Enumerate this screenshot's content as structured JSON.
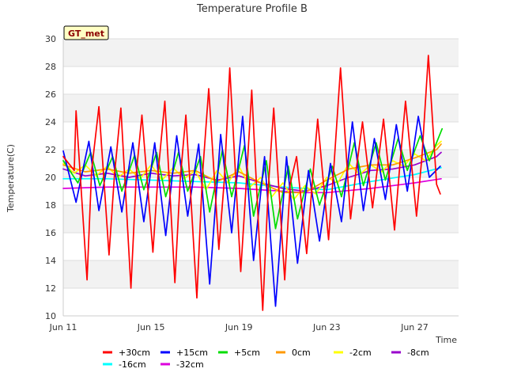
{
  "chart_data": {
    "type": "line",
    "title": "Temperature Profile B",
    "xlabel": "Time",
    "ylabel": "Temperature(C)",
    "badge": "GT_met",
    "ylim": [
      10,
      30
    ],
    "yticks": [
      10,
      12,
      14,
      16,
      18,
      20,
      22,
      24,
      26,
      28,
      30
    ],
    "xlim": [
      "2024-06-11",
      "2024-06-29"
    ],
    "xticks": [
      {
        "date": "2024-06-11",
        "label": "Jun 11"
      },
      {
        "date": "2024-06-15",
        "label": "Jun 15"
      },
      {
        "date": "2024-06-19",
        "label": "Jun 19"
      },
      {
        "date": "2024-06-23",
        "label": "Jun 23"
      },
      {
        "date": "2024-06-27",
        "label": "Jun 27"
      }
    ],
    "grid": true,
    "legend_position": "bottom",
    "series": [
      {
        "name": "+30cm",
        "color": "#ff0000",
        "x": [
          "2024-06-11 00:00",
          "2024-06-11 12:00",
          "2024-06-11 14:00",
          "2024-06-12 02:00",
          "2024-06-12 07:00",
          "2024-06-12 15:00",
          "2024-06-13 02:00",
          "2024-06-13 08:00",
          "2024-06-13 15:00",
          "2024-06-14 02:00",
          "2024-06-14 08:00",
          "2024-06-14 14:00",
          "2024-06-15 02:00",
          "2024-06-15 08:00",
          "2024-06-15 15:00",
          "2024-06-16 02:00",
          "2024-06-16 08:00",
          "2024-06-16 14:00",
          "2024-06-17 02:00",
          "2024-06-17 08:00",
          "2024-06-17 15:00",
          "2024-06-18 02:00",
          "2024-06-18 08:00",
          "2024-06-18 14:00",
          "2024-06-19 02:00",
          "2024-06-19 08:00",
          "2024-06-19 14:00",
          "2024-06-20 02:00",
          "2024-06-20 08:00",
          "2024-06-20 14:00",
          "2024-06-21 02:00",
          "2024-06-21 08:00",
          "2024-06-21 15:00",
          "2024-06-22 02:00",
          "2024-06-22 08:00",
          "2024-06-22 14:00",
          "2024-06-23 02:00",
          "2024-06-23 08:00",
          "2024-06-23 15:00",
          "2024-06-24 02:00",
          "2024-06-24 08:00",
          "2024-06-24 15:00",
          "2024-06-25 02:00",
          "2024-06-25 08:00",
          "2024-06-25 14:00",
          "2024-06-26 02:00",
          "2024-06-26 08:00",
          "2024-06-26 14:00",
          "2024-06-27 02:00",
          "2024-06-27 08:00",
          "2024-06-27 15:00",
          "2024-06-28 00:00",
          "2024-06-28 04:00"
        ],
        "y": [
          21.5,
          20.5,
          24.8,
          12.6,
          20.5,
          25.1,
          14.4,
          20.2,
          25.0,
          12.0,
          20.4,
          24.5,
          14.6,
          20.6,
          25.5,
          12.4,
          20.0,
          24.5,
          11.3,
          20.0,
          26.4,
          14.8,
          19.8,
          27.9,
          13.2,
          19.6,
          26.3,
          10.4,
          19.2,
          25.0,
          12.6,
          19.5,
          21.5,
          14.5,
          19.5,
          24.2,
          15.5,
          21.0,
          27.9,
          17.0,
          20.5,
          24.0,
          17.8,
          21.0,
          24.2,
          16.2,
          21.0,
          25.5,
          17.2,
          21.5,
          28.8,
          19.5,
          18.8
        ]
      },
      {
        "name": "+15cm",
        "color": "#0000ff",
        "x": [
          "2024-06-11 00:00",
          "2024-06-11 14:00",
          "2024-06-12 04:00",
          "2024-06-12 15:00",
          "2024-06-13 04:00",
          "2024-06-13 16:00",
          "2024-06-14 04:00",
          "2024-06-14 16:00",
          "2024-06-15 04:00",
          "2024-06-15 16:00",
          "2024-06-16 04:00",
          "2024-06-16 16:00",
          "2024-06-17 04:00",
          "2024-06-17 16:00",
          "2024-06-18 04:00",
          "2024-06-18 16:00",
          "2024-06-19 04:00",
          "2024-06-19 16:00",
          "2024-06-20 04:00",
          "2024-06-20 16:00",
          "2024-06-21 04:00",
          "2024-06-21 16:00",
          "2024-06-22 04:00",
          "2024-06-22 16:00",
          "2024-06-23 04:00",
          "2024-06-23 16:00",
          "2024-06-24 04:00",
          "2024-06-24 16:00",
          "2024-06-25 04:00",
          "2024-06-25 16:00",
          "2024-06-26 04:00",
          "2024-06-26 16:00",
          "2024-06-27 04:00",
          "2024-06-27 16:00",
          "2024-06-28 04:00"
        ],
        "y": [
          21.9,
          18.2,
          22.6,
          17.6,
          22.2,
          17.5,
          22.5,
          16.8,
          22.5,
          15.8,
          23.0,
          17.2,
          22.4,
          12.3,
          23.1,
          16.0,
          24.4,
          14.0,
          21.5,
          10.7,
          21.5,
          13.8,
          20.5,
          15.4,
          21.0,
          16.8,
          24.0,
          17.6,
          22.8,
          18.4,
          23.8,
          19.0,
          24.4,
          20.0,
          20.8
        ]
      },
      {
        "name": "+5cm",
        "color": "#00dd00",
        "x": [
          "2024-06-11 00:00",
          "2024-06-11 16:00",
          "2024-06-12 06:00",
          "2024-06-12 16:00",
          "2024-06-13 06:00",
          "2024-06-13 16:00",
          "2024-06-14 06:00",
          "2024-06-14 16:00",
          "2024-06-15 06:00",
          "2024-06-15 16:00",
          "2024-06-16 06:00",
          "2024-06-16 16:00",
          "2024-06-17 06:00",
          "2024-06-17 16:00",
          "2024-06-18 06:00",
          "2024-06-18 16:00",
          "2024-06-19 06:00",
          "2024-06-19 16:00",
          "2024-06-20 06:00",
          "2024-06-20 16:00",
          "2024-06-21 06:00",
          "2024-06-21 16:00",
          "2024-06-22 06:00",
          "2024-06-22 16:00",
          "2024-06-23 06:00",
          "2024-06-23 16:00",
          "2024-06-24 06:00",
          "2024-06-24 16:00",
          "2024-06-25 06:00",
          "2024-06-25 16:00",
          "2024-06-26 06:00",
          "2024-06-26 16:00",
          "2024-06-27 06:00",
          "2024-06-27 16:00",
          "2024-06-28 06:00"
        ],
        "y": [
          21.2,
          19.6,
          21.8,
          19.4,
          21.5,
          19.0,
          21.6,
          19.1,
          21.8,
          18.6,
          21.8,
          19.0,
          21.5,
          17.5,
          22.0,
          18.6,
          22.3,
          17.2,
          21.2,
          16.3,
          20.8,
          17.0,
          20.6,
          18.0,
          20.8,
          18.6,
          22.5,
          19.4,
          22.5,
          19.8,
          22.8,
          20.5,
          23.0,
          21.2,
          23.5
        ]
      },
      {
        "name": "0cm",
        "color": "#ff9900",
        "x": [
          "2024-06-11 00:00",
          "2024-06-12 00:00",
          "2024-06-13 00:00",
          "2024-06-14 00:00",
          "2024-06-15 00:00",
          "2024-06-16 00:00",
          "2024-06-17 00:00",
          "2024-06-18 00:00",
          "2024-06-19 00:00",
          "2024-06-20 00:00",
          "2024-06-21 00:00",
          "2024-06-22 00:00",
          "2024-06-23 00:00",
          "2024-06-24 00:00",
          "2024-06-25 00:00",
          "2024-06-26 00:00",
          "2024-06-27 00:00",
          "2024-06-28 00:00",
          "2024-06-28 05:00"
        ],
        "y": [
          20.9,
          20.4,
          20.6,
          20.3,
          20.5,
          20.3,
          20.5,
          19.7,
          20.4,
          19.6,
          18.9,
          18.9,
          19.8,
          20.6,
          20.9,
          20.9,
          21.4,
          22.0,
          22.4
        ]
      },
      {
        "name": "-2cm",
        "color": "#ffff00",
        "x": [
          "2024-06-11 00:00",
          "2024-06-11 12:00",
          "2024-06-12 00:00",
          "2024-06-12 12:00",
          "2024-06-13 00:00",
          "2024-06-13 12:00",
          "2024-06-14 00:00",
          "2024-06-14 12:00",
          "2024-06-15 00:00",
          "2024-06-15 12:00",
          "2024-06-16 00:00",
          "2024-06-16 12:00",
          "2024-06-17 00:00",
          "2024-06-17 12:00",
          "2024-06-18 00:00",
          "2024-06-18 12:00",
          "2024-06-19 00:00",
          "2024-06-19 12:00",
          "2024-06-20 00:00",
          "2024-06-20 12:00",
          "2024-06-21 00:00",
          "2024-06-21 12:00",
          "2024-06-22 00:00",
          "2024-06-22 12:00",
          "2024-06-23 00:00",
          "2024-06-23 12:00",
          "2024-06-24 00:00",
          "2024-06-24 12:00",
          "2024-06-25 00:00",
          "2024-06-25 12:00",
          "2024-06-26 00:00",
          "2024-06-26 12:00",
          "2024-06-27 00:00",
          "2024-06-27 12:00",
          "2024-06-28 00:00",
          "2024-06-28 05:00"
        ],
        "y": [
          21.0,
          20.3,
          20.9,
          20.1,
          20.8,
          20.0,
          20.6,
          19.9,
          20.9,
          19.8,
          20.7,
          19.9,
          20.5,
          19.1,
          20.5,
          19.6,
          20.8,
          19.3,
          20.0,
          18.6,
          19.6,
          18.4,
          19.4,
          18.8,
          20.0,
          19.6,
          21.0,
          20.2,
          20.9,
          20.4,
          21.2,
          20.8,
          21.7,
          21.2,
          22.3,
          22.6
        ]
      },
      {
        "name": "-8cm",
        "color": "#9900cc",
        "x": [
          "2024-06-11 00:00",
          "2024-06-12 00:00",
          "2024-06-13 00:00",
          "2024-06-14 00:00",
          "2024-06-15 00:00",
          "2024-06-16 00:00",
          "2024-06-17 00:00",
          "2024-06-18 00:00",
          "2024-06-19 00:00",
          "2024-06-20 00:00",
          "2024-06-21 00:00",
          "2024-06-22 00:00",
          "2024-06-23 00:00",
          "2024-06-24 00:00",
          "2024-06-25 00:00",
          "2024-06-26 00:00",
          "2024-06-27 00:00",
          "2024-06-28 00:00",
          "2024-06-28 05:00"
        ],
        "y": [
          20.6,
          20.1,
          20.3,
          20.0,
          20.3,
          20.1,
          20.2,
          19.8,
          20.1,
          19.6,
          19.2,
          19.0,
          19.4,
          20.0,
          20.5,
          20.6,
          20.9,
          21.5,
          21.8
        ]
      },
      {
        "name": "-16cm",
        "color": "#00ffff",
        "x": [
          "2024-06-11 00:00",
          "2024-06-13 00:00",
          "2024-06-15 00:00",
          "2024-06-17 00:00",
          "2024-06-19 00:00",
          "2024-06-21 00:00",
          "2024-06-23 00:00",
          "2024-06-24 00:00",
          "2024-06-25 00:00",
          "2024-06-27 00:00",
          "2024-06-28 05:00"
        ],
        "y": [
          19.9,
          19.9,
          19.8,
          19.7,
          19.6,
          19.3,
          19.1,
          19.4,
          19.7,
          20.2,
          20.7
        ]
      },
      {
        "name": "-32cm",
        "color": "#dd00dd",
        "x": [
          "2024-06-11 00:00",
          "2024-06-13 00:00",
          "2024-06-15 00:00",
          "2024-06-17 00:00",
          "2024-06-19 00:00",
          "2024-06-21 00:00",
          "2024-06-22 00:00",
          "2024-06-23 00:00",
          "2024-06-25 00:00",
          "2024-06-27 00:00",
          "2024-06-28 05:00"
        ],
        "y": [
          19.2,
          19.3,
          19.3,
          19.3,
          19.2,
          19.0,
          18.9,
          18.9,
          19.2,
          19.6,
          19.9
        ]
      }
    ]
  }
}
